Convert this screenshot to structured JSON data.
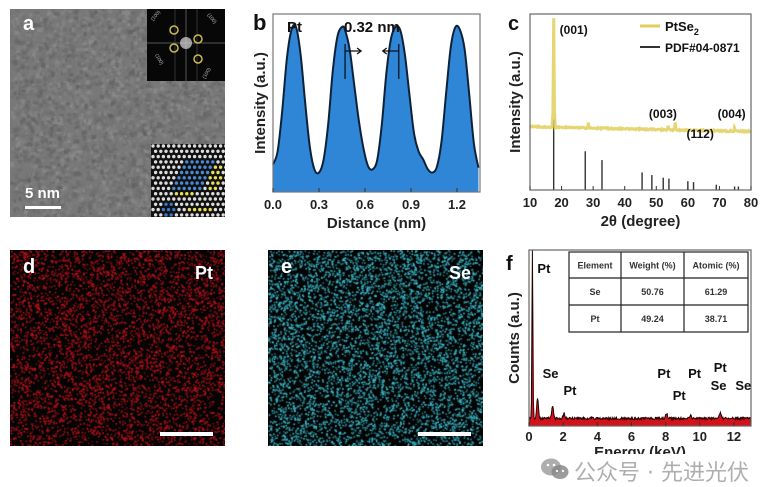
{
  "panels": {
    "a": {
      "letter": "a",
      "type": "TEM image",
      "scalebar_label": "5 nm",
      "fft_labels": [
        "(100)",
        "(100)",
        "(100)",
        "(100)"
      ]
    },
    "d": {
      "letter": "d",
      "element": "Pt",
      "map_color": "#c8141e"
    },
    "e": {
      "letter": "e",
      "element": "Se",
      "map_color": "#3ec6d8"
    }
  },
  "watermark": "公众号 · 先进光伏",
  "chart_data": [
    {
      "id": "b",
      "letter": "b",
      "type": "area",
      "title": "",
      "annotation_element": "Pt",
      "annotation_spacing": "0.32 nm",
      "xlabel": "Distance (nm)",
      "ylabel": "Intensity (a.u.)",
      "xlim": [
        0,
        1.35
      ],
      "ylim": [
        0,
        1.1
      ],
      "xticks": [
        0.0,
        0.3,
        0.6,
        0.9,
        1.2
      ],
      "xtick_labels": [
        "0.0",
        "0.3",
        "0.6",
        "0.9",
        "1.2"
      ],
      "fill_color": "#2f86d6",
      "x": [
        0.0,
        0.03,
        0.06,
        0.09,
        0.12,
        0.15,
        0.18,
        0.21,
        0.24,
        0.27,
        0.3,
        0.33,
        0.36,
        0.39,
        0.42,
        0.45,
        0.47,
        0.5,
        0.53,
        0.56,
        0.59,
        0.62,
        0.65,
        0.68,
        0.71,
        0.74,
        0.77,
        0.8,
        0.83,
        0.86,
        0.89,
        0.92,
        0.95,
        0.98,
        1.01,
        1.04,
        1.07,
        1.1,
        1.13,
        1.16,
        1.19,
        1.22,
        1.25,
        1.28,
        1.31,
        1.34
      ],
      "y": [
        0.17,
        0.25,
        0.5,
        0.82,
        1.0,
        1.02,
        0.85,
        0.55,
        0.28,
        0.14,
        0.12,
        0.2,
        0.42,
        0.75,
        0.96,
        1.02,
        1.0,
        0.88,
        0.66,
        0.44,
        0.27,
        0.16,
        0.14,
        0.2,
        0.42,
        0.74,
        0.95,
        1.02,
        1.0,
        0.85,
        0.6,
        0.36,
        0.25,
        0.2,
        0.14,
        0.12,
        0.16,
        0.32,
        0.62,
        0.9,
        1.02,
        1.0,
        0.88,
        0.6,
        0.3,
        0.15
      ]
    },
    {
      "id": "c",
      "letter": "c",
      "type": "line",
      "xlabel": "2θ (degree)",
      "ylabel": "Intensity (a.u.)",
      "xlim": [
        10,
        80
      ],
      "ylim": [
        0,
        1.0
      ],
      "xticks": [
        10,
        20,
        30,
        40,
        50,
        60,
        70,
        80
      ],
      "xtick_labels": [
        "10",
        "20",
        "30",
        "40",
        "50",
        "60",
        "70",
        "80"
      ],
      "legend": [
        {
          "label": "PtSe",
          "sub": "2",
          "color": "#e0cf5a"
        },
        {
          "label": "PDF#04-0871",
          "color": "#333333"
        }
      ],
      "legend_position": "top-right",
      "peak_labels": [
        {
          "text": "(001)",
          "x": 17.5
        },
        {
          "text": "(003)",
          "x": 54
        },
        {
          "text": "(112)",
          "x": 62
        },
        {
          "text": "(004)",
          "x": 74.5
        }
      ],
      "series": [
        {
          "name": "PtSe2",
          "color": "#e0cf5a",
          "baseline": 0.36,
          "peaks": [
            {
              "x": 17.5,
              "y": 0.98
            },
            {
              "x": 28.5,
              "y": 0.39
            },
            {
              "x": 53.8,
              "y": 0.38
            },
            {
              "x": 56.0,
              "y": 0.4
            },
            {
              "x": 74.8,
              "y": 0.38
            }
          ]
        },
        {
          "name": "PDF#04-0871",
          "color": "#333333",
          "sticks": [
            {
              "x": 17.5,
              "y": 0.4
            },
            {
              "x": 27.5,
              "y": 0.22
            },
            {
              "x": 32.8,
              "y": 0.17
            },
            {
              "x": 45.5,
              "y": 0.1
            },
            {
              "x": 48.6,
              "y": 0.085
            },
            {
              "x": 52.2,
              "y": 0.07
            },
            {
              "x": 54.0,
              "y": 0.065
            },
            {
              "x": 60.0,
              "y": 0.05
            },
            {
              "x": 61.8,
              "y": 0.045
            },
            {
              "x": 69.0,
              "y": 0.03
            },
            {
              "x": 74.8,
              "y": 0.02
            },
            {
              "x": 76.0,
              "y": 0.02
            }
          ]
        }
      ]
    },
    {
      "id": "f",
      "letter": "f",
      "type": "area",
      "xlabel": "Energy (keV)",
      "ylabel": "Counts (a.u.)",
      "xlim": [
        0,
        13
      ],
      "ylim": [
        0,
        1.0
      ],
      "xticks": [
        0,
        2,
        4,
        6,
        8,
        10,
        12
      ],
      "xtick_labels": [
        "0",
        "2",
        "4",
        "6",
        "8",
        "10",
        "12"
      ],
      "fill_color": "#d4121a",
      "baseline": 0.045,
      "peaks": [
        {
          "x": 0.2,
          "y": 1.0
        },
        {
          "x": 0.5,
          "y": 0.16
        },
        {
          "x": 1.38,
          "y": 0.12
        },
        {
          "x": 2.05,
          "y": 0.075
        },
        {
          "x": 3.7,
          "y": 0.05
        },
        {
          "x": 8.05,
          "y": 0.075
        },
        {
          "x": 9.45,
          "y": 0.065
        },
        {
          "x": 11.2,
          "y": 0.08
        },
        {
          "x": 12.5,
          "y": 0.05
        }
      ],
      "peak_labels": [
        {
          "text": "Pt",
          "x": 0.2
        },
        {
          "text": "Se",
          "x": 1.38
        },
        {
          "text": "Pt",
          "x": 2.05
        },
        {
          "text": "Pt",
          "x": 8.0
        },
        {
          "text": "Pt",
          "x": 8.95
        },
        {
          "text": "Pt",
          "x": 9.45
        },
        {
          "text": "Pt",
          "x": 11.2
        },
        {
          "text": "Se",
          "x": 11.2
        },
        {
          "text": "Se",
          "x": 12.4
        }
      ],
      "table": {
        "headers": [
          "Element",
          "Weight (%)",
          "Atomic (%)"
        ],
        "rows": [
          [
            "Se",
            "50.76",
            "61.29"
          ],
          [
            "Pt",
            "49.24",
            "38.71"
          ]
        ]
      }
    }
  ]
}
